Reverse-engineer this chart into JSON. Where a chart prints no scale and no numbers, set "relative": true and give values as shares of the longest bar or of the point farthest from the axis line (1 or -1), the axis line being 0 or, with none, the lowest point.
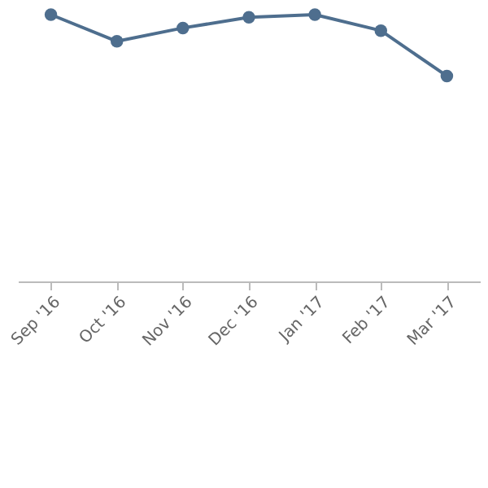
{
  "chart_data": {
    "type": "line",
    "relative": true,
    "marker": "circle",
    "line_style": "solid",
    "categories": [
      "Sep '16",
      "Oct '16",
      "Nov '16",
      "Dec '16",
      "Jan '17",
      "Feb '17",
      "Mar '17"
    ],
    "series": [
      {
        "color": "#4e6e8e",
        "values": [
          1,
          0.9,
          0.95,
          0.99,
          1,
          0.94,
          0.77
        ]
      }
    ]
  }
}
